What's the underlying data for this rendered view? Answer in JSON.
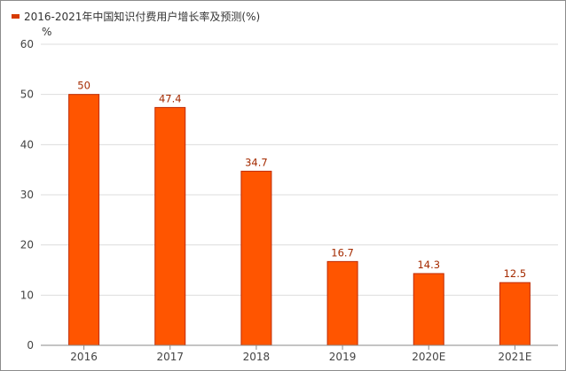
{
  "legend": {
    "label": "2016-2021年中国知识付费用户增长率及预测(%)"
  },
  "colors": {
    "bar_fill": "#ff5500",
    "bar_stroke": "#c02a00",
    "grid": "#dddddd",
    "legend": "#d63a00"
  },
  "chart_data": {
    "type": "bar",
    "title": "",
    "xlabel": "",
    "ylabel": "%",
    "categories": [
      "2016",
      "2017",
      "2018",
      "2019",
      "2020E",
      "2021E"
    ],
    "series": [
      {
        "name": "2016-2021年中国知识付费用户增长率及预测(%)",
        "values": [
          50,
          47.4,
          34.7,
          16.7,
          14.3,
          12.5
        ]
      }
    ],
    "value_labels": [
      "50",
      "47.4",
      "34.7",
      "16.7",
      "14.3",
      "12.5"
    ],
    "y_ticks": [
      "0",
      "10",
      "20",
      "30",
      "40",
      "50",
      "60"
    ],
    "ylim": [
      0,
      60
    ],
    "grid": true,
    "legend_position": "top-left"
  }
}
